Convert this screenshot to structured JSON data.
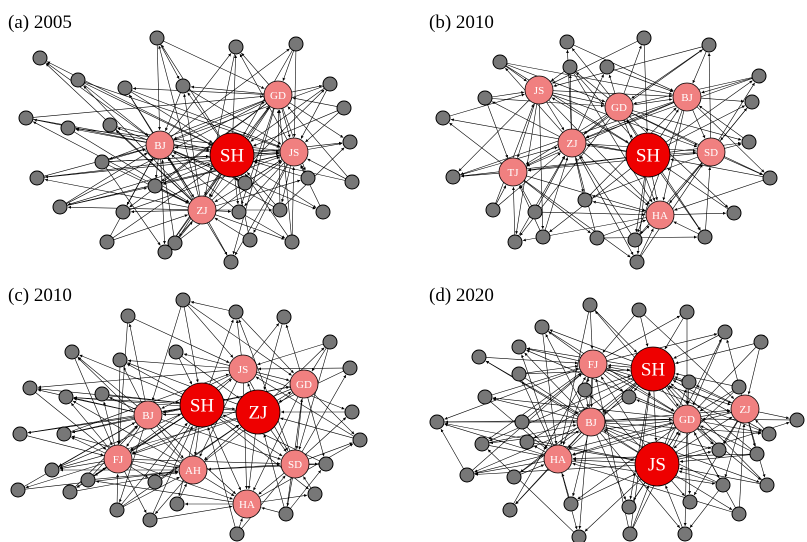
{
  "colors": {
    "edge": "#000000",
    "peripheral_node": "#777777",
    "major_node": "#f08080",
    "core_node": "#ee0000",
    "node_outline": "#000000",
    "label": "#ffffff"
  },
  "panels": [
    {
      "label": "(a) 2005",
      "core_nodes": [
        "SH"
      ],
      "major_nodes": [
        "GD",
        "BJ",
        "JS",
        "ZJ"
      ]
    },
    {
      "label": "(b) 2010",
      "core_nodes": [
        "SH"
      ],
      "major_nodes": [
        "JS",
        "GD",
        "BJ",
        "ZJ",
        "SD",
        "TJ",
        "HA"
      ]
    },
    {
      "label": "(c) 2010",
      "core_nodes": [
        "SH",
        "ZJ"
      ],
      "major_nodes": [
        "JS",
        "GD",
        "BJ",
        "FJ",
        "AH",
        "SD",
        "HA"
      ]
    },
    {
      "label": "(d) 2020",
      "core_nodes": [
        "SH",
        "JS"
      ],
      "major_nodes": [
        "FJ",
        "BJ",
        "GD",
        "ZJ",
        "HA"
      ]
    }
  ]
}
